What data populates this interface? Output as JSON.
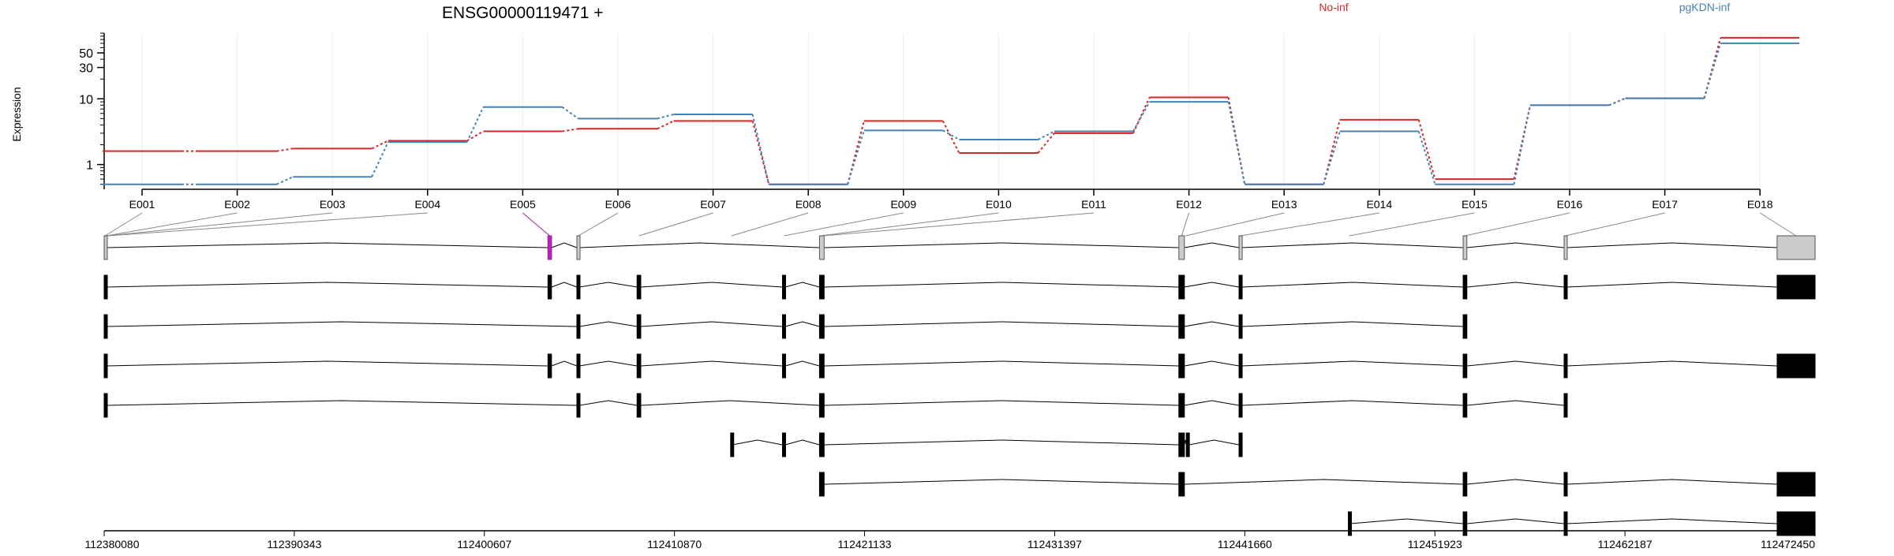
{
  "chart_data": {
    "type": "line",
    "title": "ENSG00000119471 +",
    "ylabel": "Expression",
    "yscale": "log",
    "yticks": [
      "1",
      "10",
      "30",
      "50"
    ],
    "ytick_values": [
      1,
      10,
      30,
      50
    ],
    "legend_placement": "top",
    "categories": [
      "E001",
      "E002",
      "E003",
      "E004",
      "E005",
      "E006",
      "E007",
      "E008",
      "E009",
      "E010",
      "E011",
      "E012",
      "E013",
      "E014",
      "E015",
      "E016",
      "E017",
      "E018"
    ],
    "series": [
      {
        "name": "No-inf",
        "color": "#d62728",
        "values": [
          1.6,
          1.6,
          1.75,
          2.3,
          3.2,
          3.5,
          4.6,
          0.5,
          4.6,
          1.5,
          3.0,
          10.5,
          0.5,
          4.8,
          0.6,
          8.0,
          10.2,
          85
        ]
      },
      {
        "name": "pgKDN-inf",
        "color": "#4682b4",
        "values": [
          0.5,
          0.5,
          0.65,
          2.2,
          7.5,
          5.0,
          5.8,
          0.5,
          3.3,
          2.4,
          3.2,
          9.0,
          0.5,
          3.2,
          0.5,
          8.0,
          10.2,
          70
        ]
      }
    ],
    "grid": true,
    "genomic_axis": {
      "ticks": [
        "112380080",
        "112390343",
        "112400607",
        "112410870",
        "112421133",
        "112431397",
        "112441660",
        "112451923",
        "112462187",
        "112472450"
      ],
      "tick_values": [
        112380080,
        112390343,
        112400607,
        112410870,
        112421133,
        112431397,
        112441660,
        112451923,
        112462187,
        112472450
      ]
    },
    "exons": [
      {
        "id": "E001",
        "start": 112380080,
        "end": 112380180
      },
      {
        "id": "E002",
        "start": 112380180,
        "end": 112380230
      },
      {
        "id": "E003",
        "start": 112380230,
        "end": 112380280
      },
      {
        "id": "E004",
        "start": 112380280,
        "end": 112380330
      },
      {
        "id": "E005",
        "start": 112404040,
        "end": 112404230,
        "highlight": true
      },
      {
        "id": "E006",
        "start": 112405600,
        "end": 112405750
      },
      {
        "id": "E007",
        "start": 112408850,
        "end": 112409050
      },
      {
        "id": "E008",
        "start": 112413900,
        "end": 112414000
      },
      {
        "id": "E009",
        "start": 112416700,
        "end": 112416850
      },
      {
        "id": "E010",
        "start": 112418700,
        "end": 112418850
      },
      {
        "id": "E011",
        "start": 112418850,
        "end": 112418950
      },
      {
        "id": "E012",
        "start": 112438100,
        "end": 112438400
      },
      {
        "id": "E013",
        "start": 112438400,
        "end": 112438550
      },
      {
        "id": "E014",
        "start": 112441350,
        "end": 112441500
      },
      {
        "id": "E015",
        "start": 112447250,
        "end": 112447350
      },
      {
        "id": "E016",
        "start": 112453450,
        "end": 112453650
      },
      {
        "id": "E017",
        "start": 112458900,
        "end": 112459050
      },
      {
        "id": "E018",
        "start": 112470400,
        "end": 112472450
      }
    ],
    "transcripts": [
      {
        "exons": [
          [
            112380080,
            112380180
          ],
          [
            112404040,
            112404230
          ],
          [
            112405600,
            112405750
          ],
          [
            112418700,
            112418950
          ],
          [
            112438100,
            112438400
          ],
          [
            112441350,
            112441500
          ],
          [
            112453450,
            112453650
          ],
          [
            112458900,
            112459050
          ],
          [
            112470400,
            112472450
          ]
        ]
      },
      {
        "exons": [
          [
            112380080,
            112380180
          ],
          [
            112404040,
            112404230
          ],
          [
            112405600,
            112405750
          ],
          [
            112408850,
            112409050
          ],
          [
            112416700,
            112416850
          ],
          [
            112418700,
            112418950
          ],
          [
            112438100,
            112438400
          ],
          [
            112441350,
            112441500
          ],
          [
            112453450,
            112453650
          ],
          [
            112458900,
            112459050
          ],
          [
            112470400,
            112472450
          ]
        ]
      },
      {
        "exons": [
          [
            112380080,
            112380180
          ],
          [
            112405600,
            112405750
          ],
          [
            112408850,
            112409050
          ],
          [
            112416700,
            112416850
          ],
          [
            112418700,
            112418950
          ],
          [
            112438100,
            112438400
          ],
          [
            112441350,
            112441500
          ],
          [
            112453450,
            112453650
          ]
        ]
      },
      {
        "exons": [
          [
            112380080,
            112380180
          ],
          [
            112404040,
            112404230
          ],
          [
            112405600,
            112405750
          ],
          [
            112408850,
            112409050
          ],
          [
            112416700,
            112416850
          ],
          [
            112418700,
            112418950
          ],
          [
            112438100,
            112438400
          ],
          [
            112441350,
            112441500
          ],
          [
            112453450,
            112453650
          ],
          [
            112458900,
            112459050
          ],
          [
            112470400,
            112472450
          ]
        ]
      },
      {
        "exons": [
          [
            112380080,
            112380180
          ],
          [
            112405600,
            112405750
          ],
          [
            112408850,
            112409050
          ],
          [
            112418700,
            112418950
          ],
          [
            112438100,
            112438400
          ],
          [
            112441350,
            112441500
          ],
          [
            112453450,
            112453650
          ],
          [
            112458900,
            112459050
          ]
        ]
      },
      {
        "exons": [
          [
            112413900,
            112414000
          ],
          [
            112416700,
            112416850
          ],
          [
            112418700,
            112418950
          ],
          [
            112438100,
            112438400
          ],
          [
            112438500,
            112438650
          ],
          [
            112441350,
            112441500
          ]
        ]
      },
      {
        "exons": [
          [
            112418700,
            112418950
          ],
          [
            112438100,
            112438400
          ],
          [
            112453450,
            112453650
          ],
          [
            112458900,
            112459050
          ],
          [
            112470400,
            112472450
          ]
        ]
      },
      {
        "exons": [
          [
            112447250,
            112447350
          ],
          [
            112453450,
            112453650
          ],
          [
            112458900,
            112459050
          ],
          [
            112470400,
            112472450
          ]
        ]
      }
    ]
  }
}
